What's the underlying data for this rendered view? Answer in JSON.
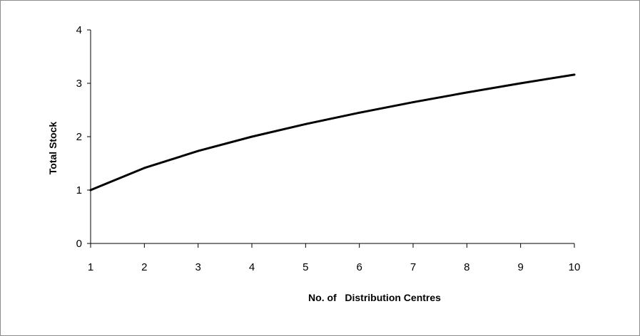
{
  "chart_data": {
    "type": "line",
    "title": "",
    "xlabel": "No. of   Distribution Centres",
    "ylabel": "Total Stock",
    "x": [
      1,
      2,
      3,
      4,
      5,
      6,
      7,
      8,
      9,
      10
    ],
    "series": [
      {
        "values": [
          1.0,
          1.414,
          1.732,
          2.0,
          2.236,
          2.449,
          2.646,
          2.828,
          3.0,
          3.162
        ]
      }
    ],
    "xlim": [
      1,
      10
    ],
    "ylim": [
      0,
      4
    ],
    "xticks": [
      1,
      2,
      3,
      4,
      5,
      6,
      7,
      8,
      9,
      10
    ],
    "yticks": [
      0,
      1,
      2,
      3,
      4
    ],
    "grid": false,
    "legend": "none",
    "line_color": "#000000"
  }
}
